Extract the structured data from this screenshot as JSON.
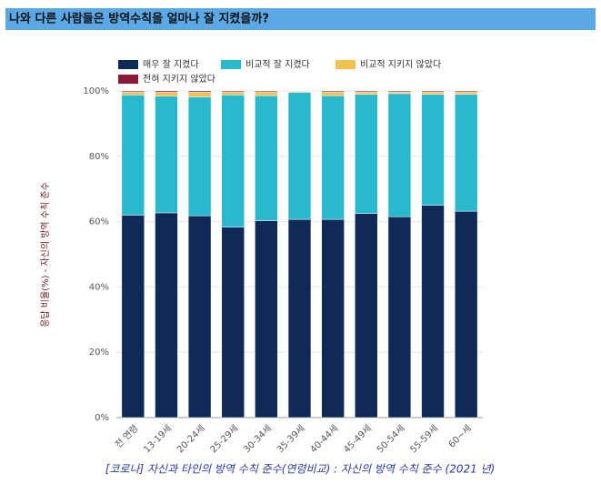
{
  "chart_data": {
    "type": "stacked_bar_100",
    "title": "나와 다른 사람들은 방역수칙을 얼마나 잘 지켰을까?",
    "y_label": "응답 비율(%) - 자신의 방역 수칙 준수",
    "caption": "[코로나] 자신과 타인의 방역 수칙 준수(연령비교) : 자신의 방역 수칙 준수 (2021 년)",
    "categories": [
      "전 연령",
      "13-19세",
      "20-24세",
      "25-29세",
      "30-34세",
      "35-39세",
      "40-44세",
      "45-49세",
      "50-54세",
      "55-59세",
      "60~세"
    ],
    "series": [
      {
        "name": "매우 잘 지켰다",
        "color": "#0f2a56",
        "values": [
          62,
          62.7,
          61.8,
          58.3,
          60.3,
          60.7,
          60.7,
          62.5,
          61.5,
          65,
          63.2
        ]
      },
      {
        "name": "비교적 잘 지켰다",
        "color": "#29b8cc",
        "values": [
          36.8,
          35.7,
          36.4,
          40.5,
          38.3,
          38.9,
          37.9,
          36.5,
          37.7,
          34,
          35.8
        ]
      },
      {
        "name": "비교적 지키지 않았다",
        "color": "#f2c14e",
        "values": [
          0.9,
          1.2,
          1.4,
          0.9,
          1.1,
          0.3,
          1.1,
          0.7,
          0.5,
          0.7,
          0.7
        ]
      },
      {
        "name": "전혀 지키지 않았다",
        "color": "#8b1a3a",
        "values": [
          0.3,
          0.4,
          0.4,
          0.3,
          0.3,
          0.1,
          0.3,
          0.3,
          0.3,
          0.3,
          0.3
        ]
      }
    ],
    "ylim": [
      0,
      100
    ],
    "yticks": [
      {
        "value": 0,
        "label": "0%"
      },
      {
        "value": 20,
        "label": "20%"
      },
      {
        "value": 40,
        "label": "40%"
      },
      {
        "value": 60,
        "label": "60%"
      },
      {
        "value": 80,
        "label": "80%"
      },
      {
        "value": 100,
        "label": "100%"
      }
    ],
    "grid": true
  }
}
